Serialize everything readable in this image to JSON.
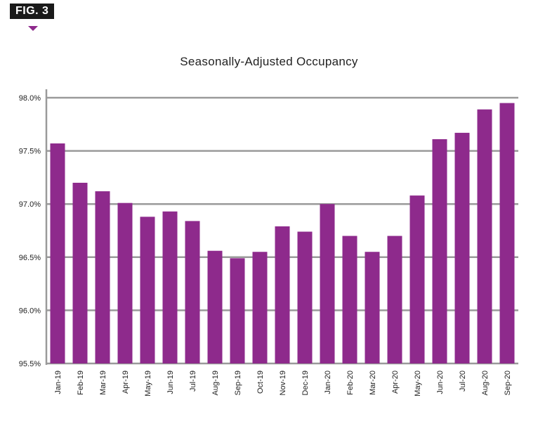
{
  "figure_label": "FIG. 3",
  "colors": {
    "bar": "#8e2a8c",
    "grid": "#9a9a9a",
    "badge_bg": "#1a1a1a",
    "pointer": "#8e2a8c"
  },
  "chart_data": {
    "type": "bar",
    "title": "Seasonally-Adjusted Occupancy",
    "xlabel": "",
    "ylabel": "",
    "ylim": [
      95.5,
      98.0
    ],
    "yticks": [
      95.5,
      96.0,
      96.5,
      97.0,
      97.5,
      98.0
    ],
    "ytick_labels": [
      "95.5%",
      "96.0%",
      "96.5%",
      "97.0%",
      "97.5%",
      "98.0%"
    ],
    "categories": [
      "Jan-19",
      "Feb-19",
      "Mar-19",
      "Apr-19",
      "May-19",
      "Jun-19",
      "Jul-19",
      "Aug-19",
      "Sep-19",
      "Oct-19",
      "Nov-19",
      "Dec-19",
      "Jan-20",
      "Feb-20",
      "Mar-20",
      "Apr-20",
      "May-20",
      "Jun-20",
      "Jul-20",
      "Aug-20",
      "Sep-20"
    ],
    "values": [
      97.57,
      97.2,
      97.12,
      97.01,
      96.88,
      96.93,
      96.84,
      96.56,
      96.49,
      96.55,
      96.79,
      96.74,
      97.0,
      96.7,
      96.55,
      96.7,
      97.08,
      97.61,
      97.67,
      97.89,
      97.95
    ],
    "grid": true,
    "legend": "none"
  }
}
